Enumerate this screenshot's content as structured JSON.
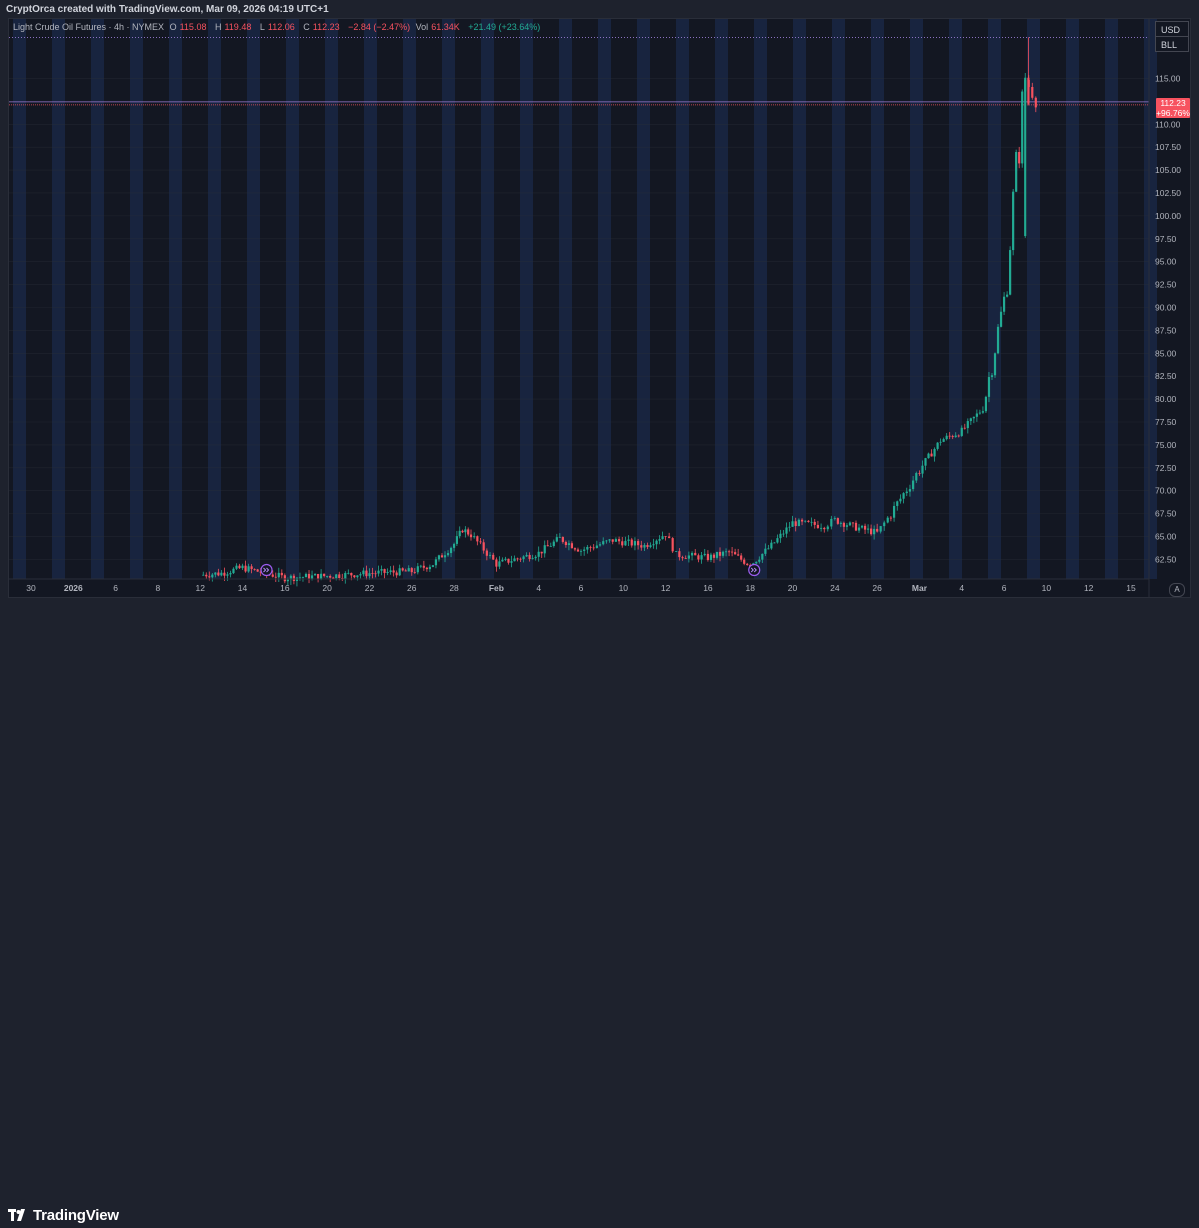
{
  "credit": "CryptOrca created with TradingView.com, Mar 09, 2026 04:19 UTC+1",
  "legend": {
    "symbol": "Light Crude Oil Futures · 4h · NYMEX",
    "open_label": "O",
    "open": "115.08",
    "high_label": "H",
    "high": "119.48",
    "low_label": "L",
    "low": "112.06",
    "close_label": "C",
    "close": "112.23",
    "change": "−2.84 (−2.47%)",
    "vol_label": "Vol",
    "vol": "61.34K",
    "vol_change": "+21.49 (+23.64%)"
  },
  "currency": "USD",
  "unit": "BLL",
  "price_tag": {
    "price": "112.23",
    "change": "+96.76%"
  },
  "axis_button": "A",
  "brand": "TradingView",
  "colors": {
    "up": "#22ab94",
    "down": "#f7525f",
    "background": "#131722",
    "session_band": "#1b2a4a",
    "last_price_line": "#f7525f",
    "high_line": "#9c7dd6"
  },
  "chart_data": {
    "type": "candlestick",
    "title": "Light Crude Oil Futures · 4h · NYMEX",
    "xlabel": "",
    "ylabel": "",
    "ylim": [
      60.8,
      120.4
    ],
    "grid": true,
    "x_tick_labels": [
      "30",
      "2026",
      "6",
      "8",
      "12",
      "14",
      "16",
      "20",
      "22",
      "26",
      "28",
      "Feb",
      "4",
      "6",
      "10",
      "12",
      "16",
      "18",
      "20",
      "24",
      "26",
      "Mar",
      "4",
      "6",
      "10",
      "12",
      "15"
    ],
    "y_tick_labels": [
      "62.50",
      "65.00",
      "67.50",
      "70.00",
      "72.50",
      "75.00",
      "77.50",
      "80.00",
      "82.50",
      "85.00",
      "87.50",
      "90.00",
      "92.50",
      "95.00",
      "97.50",
      "100.00",
      "102.50",
      "105.00",
      "107.50",
      "110.00",
      "115.00"
    ],
    "last_price": 112.23,
    "last_change_pct": "+96.76%",
    "session_high": 119.48,
    "marker_icons": [
      "event-icon",
      "event-icon"
    ],
    "trend_closes_by_date": [
      {
        "date": "Jan 12",
        "close": 60.8
      },
      {
        "date": "Jan 13",
        "close": 61.0
      },
      {
        "date": "Jan 14",
        "close": 61.6
      },
      {
        "date": "Jan 16",
        "close": 60.5
      },
      {
        "date": "Jan 20",
        "close": 60.7
      },
      {
        "date": "Jan 22",
        "close": 61.0
      },
      {
        "date": "Jan 26",
        "close": 61.2
      },
      {
        "date": "Jan 27",
        "close": 62.0
      },
      {
        "date": "Jan 28",
        "close": 64.2
      },
      {
        "date": "Jan 29",
        "close": 65.8
      },
      {
        "date": "Jan 30",
        "close": 65.2
      },
      {
        "date": "Feb 2",
        "close": 62.0
      },
      {
        "date": "Feb 4",
        "close": 63.2
      },
      {
        "date": "Feb 5",
        "close": 64.8
      },
      {
        "date": "Feb 6",
        "close": 63.5
      },
      {
        "date": "Feb 9",
        "close": 64.6
      },
      {
        "date": "Feb 11",
        "close": 64.0
      },
      {
        "date": "Feb 12",
        "close": 65.3
      },
      {
        "date": "Feb 13",
        "close": 63.0
      },
      {
        "date": "Feb 16",
        "close": 62.7
      },
      {
        "date": "Feb 17",
        "close": 63.3
      },
      {
        "date": "Feb 18",
        "close": 61.9
      },
      {
        "date": "Feb 19",
        "close": 64.0
      },
      {
        "date": "Feb 20",
        "close": 66.5
      },
      {
        "date": "Feb 23",
        "close": 66.2
      },
      {
        "date": "Feb 24",
        "close": 66.8
      },
      {
        "date": "Feb 25",
        "close": 66.0
      },
      {
        "date": "Feb 26",
        "close": 65.4
      },
      {
        "date": "Feb 27",
        "close": 67.0
      },
      {
        "date": "Mar 2",
        "close": 72.3
      },
      {
        "date": "Mar 3",
        "close": 75.5
      },
      {
        "date": "Mar 4",
        "close": 76.5
      },
      {
        "date": "Mar 5",
        "close": 79.0
      },
      {
        "date": "Mar 6",
        "close": 90.8
      },
      {
        "date": "Mar 8",
        "close": 115.08
      },
      {
        "date": "Mar 9",
        "close": 112.23
      }
    ]
  }
}
